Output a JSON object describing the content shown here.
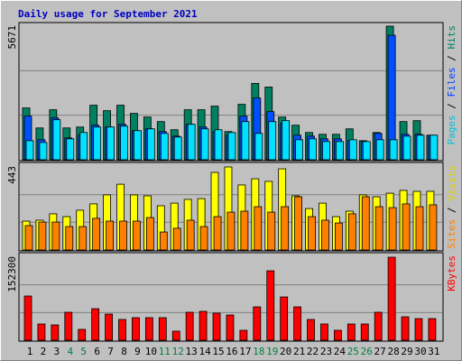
{
  "chart_data": [
    {
      "type": "bar",
      "title": "Daily usage for September 2021",
      "ylim": [
        0,
        5671
      ],
      "yticks": [
        5671
      ],
      "gridlines": [
        1890,
        3780
      ],
      "legend_separator": " / ",
      "series": [
        {
          "name": "Pages",
          "color": "#00e0ff",
          "text_color": "#00c0e0",
          "values": [
            810,
            733,
            1698,
            887,
            1157,
            1389,
            1389,
            1427,
            1235,
            1312,
            1119,
            965,
            1505,
            1312,
            1273,
            1157,
            1620,
            1119,
            1620,
            1659,
            849,
            887,
            772,
            772,
            849,
            772,
            849,
            849,
            1003,
            1042,
            1042
          ]
        },
        {
          "name": "Files",
          "color": "#0050ff",
          "text_color": "#0040ff",
          "values": [
            1852,
            849,
            1775,
            926,
            1042,
            1466,
            1389,
            1505,
            1235,
            1312,
            1196,
            1003,
            1505,
            1389,
            1196,
            1042,
            1852,
            2623,
            2045,
            1543,
            1042,
            1003,
            887,
            887,
            810,
            772,
            1119,
            5285,
            1080,
            1080,
            1042
          ]
        },
        {
          "name": "Hits",
          "color": "#008060",
          "text_color": "#008060",
          "values": [
            2199,
            1350,
            2122,
            1350,
            1389,
            2315,
            2083,
            2315,
            1968,
            1813,
            1620,
            1273,
            2122,
            2122,
            2276,
            1196,
            2353,
            3241,
            3086,
            1813,
            1466,
            1157,
            1080,
            1080,
            1312,
            810,
            1157,
            5671,
            1620,
            1659,
            1042
          ]
        }
      ]
    },
    {
      "type": "bar",
      "ylim": [
        0,
        443
      ],
      "yticks": [
        443
      ],
      "gridlines": [
        148,
        295
      ],
      "legend_separator": " / ",
      "series": [
        {
          "name": "Sites",
          "color": "#ff8000",
          "text_color": "#ff8000",
          "values": [
            130,
            149,
            149,
            125,
            125,
            169,
            154,
            154,
            154,
            173,
            96,
            116,
            159,
            125,
            178,
            202,
            207,
            231,
            202,
            231,
            284,
            178,
            159,
            144,
            193,
            284,
            231,
            226,
            246,
            231,
            241
          ]
        },
        {
          "name": "Visits",
          "color": "#ffff00",
          "text_color": "#e0d000",
          "values": [
            154,
            159,
            193,
            178,
            212,
            246,
            294,
            351,
            294,
            289,
            236,
            250,
            270,
            274,
            414,
            443,
            347,
            380,
            366,
            433,
            289,
            221,
            250,
            178,
            207,
            294,
            284,
            303,
            318,
            313,
            313
          ]
        }
      ]
    },
    {
      "type": "bar",
      "ylim": [
        0,
        152300
      ],
      "yticks": [
        152300
      ],
      "gridlines": [
        50800,
        101500
      ],
      "categories": [
        "1",
        "2",
        "3",
        "4",
        "5",
        "6",
        "7",
        "8",
        "9",
        "10",
        "11",
        "12",
        "13",
        "14",
        "15",
        "16",
        "17",
        "18",
        "19",
        "20",
        "21",
        "22",
        "23",
        "24",
        "25",
        "26",
        "27",
        "28",
        "29",
        "30",
        "31"
      ],
      "category_colors": [
        "#000000",
        "#000000",
        "#000000",
        "#008040",
        "#008040",
        "#000000",
        "#000000",
        "#000000",
        "#000000",
        "#000000",
        "#008040",
        "#008040",
        "#000000",
        "#000000",
        "#000000",
        "#000000",
        "#000000",
        "#008040",
        "#008040",
        "#000000",
        "#000000",
        "#000000",
        "#000000",
        "#000000",
        "#008040",
        "#008040",
        "#000000",
        "#000000",
        "#000000",
        "#000000",
        "#000000"
      ],
      "series": [
        {
          "name": "KBytes",
          "color": "#ff0000",
          "text_color": "#ff0000",
          "values": [
            81100,
            29800,
            28100,
            51300,
            19900,
            57900,
            48000,
            38100,
            41400,
            41400,
            41400,
            16600,
            51300,
            53000,
            49700,
            46300,
            18200,
            61200,
            127400,
            79400,
            61200,
            38100,
            29800,
            18200,
            29800,
            29800,
            51300,
            152300,
            43000,
            39700,
            39700
          ]
        }
      ]
    }
  ]
}
